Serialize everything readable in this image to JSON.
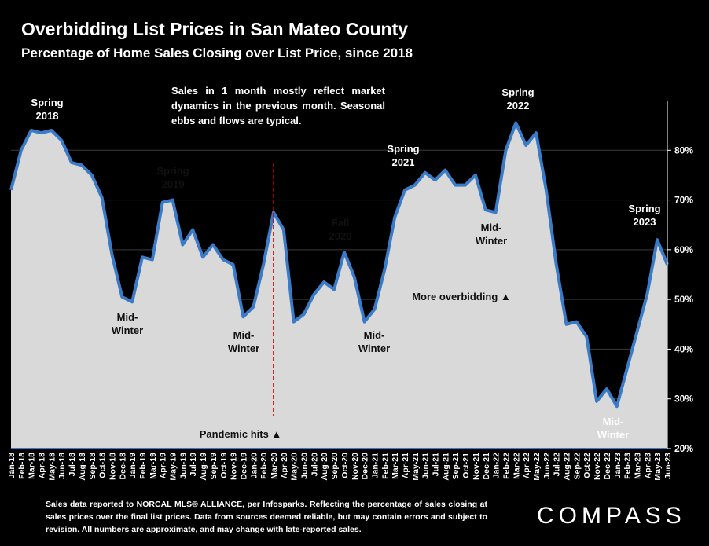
{
  "header": {
    "title": "Overbidding List Prices in San Mateo County",
    "subtitle": "Percentage of Home Sales Closing over List Price, since 2018"
  },
  "note": "Sales in 1 month mostly reflect market dynamics in the previous month. Seasonal ebbs and flows are typical.",
  "footnote": "Sales data reported to NORCAL MLS® ALLIANCE, per Infosparks. Reflecting the percentage of sales closing at sales prices over the final list prices. Data from sources deemed reliable, but may contain errors and subject to revision. All numbers are approximate, and may change with late-reported sales.",
  "logo": "COMPASS",
  "annotations": {
    "spring2018_a": "Spring",
    "spring2018_b": "2018",
    "spring2019_a": "Spring",
    "spring2019_b": "2019",
    "spring2021_a": "Spring",
    "spring2021_b": "2021",
    "spring2022_a": "Spring",
    "spring2022_b": "2022",
    "spring2023_a": "Spring",
    "spring2023_b": "2023",
    "fall2020_a": "Fall",
    "fall2020_b": "2020",
    "midwinter1_a": "Mid-",
    "midwinter1_b": "Winter",
    "midwinter2_a": "Mid-",
    "midwinter2_b": "Winter",
    "midwinter3_a": "Mid-",
    "midwinter3_b": "Winter",
    "midwinter4_a": "Mid-",
    "midwinter4_b": "Winter",
    "midwinter5_a": "Mid-",
    "midwinter5_b": "Winter",
    "pandemic": "Pandemic hits ▲",
    "more": "More overbidding ▲"
  },
  "colors": {
    "line": "#3a7bc8",
    "area": "#d9d9d9",
    "pandemic_line": "#c00000",
    "background": "#000000"
  },
  "chart_data": {
    "type": "area",
    "title": "Overbidding List Prices in San Mateo County",
    "subtitle": "Percentage of Home Sales Closing over List Price, since 2018",
    "ylim": [
      20,
      90
    ],
    "yticks": [
      20,
      30,
      40,
      50,
      60,
      70,
      80
    ],
    "ytick_labels": [
      "20%",
      "30%",
      "40%",
      "50%",
      "60%",
      "70%",
      "80%"
    ],
    "grid": true,
    "x": [
      "Jan-18",
      "Feb-18",
      "Mar-18",
      "Apr-18",
      "May-18",
      "Jun-18",
      "Jul-18",
      "Aug-18",
      "Sep-18",
      "Oct-18",
      "Nov-18",
      "Dec-18",
      "Jan-19",
      "Feb-19",
      "Mar-19",
      "Apr-19",
      "May-19",
      "Jun-19",
      "Jul-19",
      "Aug-19",
      "Sep-19",
      "Oct-19",
      "Nov-19",
      "Dec-19",
      "Jan-20",
      "Feb-20",
      "Mar-20",
      "Apr-20",
      "May-20",
      "Jun-20",
      "Jul-20",
      "Aug-20",
      "Sep-20",
      "Oct-20",
      "Nov-20",
      "Dec-20",
      "Jan-21",
      "Feb-21",
      "Mar-21",
      "Apr-21",
      "May-21",
      "Jun-21",
      "Jul-21",
      "Aug-21",
      "Sep-21",
      "Oct-21",
      "Nov-21",
      "Dec-21",
      "Jan-22",
      "Feb-22",
      "Mar-22",
      "Apr-22",
      "May-22",
      "Jun-22",
      "Jul-22",
      "Aug-22",
      "Sep-22",
      "Oct-22",
      "Nov-22",
      "Dec-22",
      "Jan-23",
      "Feb-23",
      "Mar-23",
      "Apr-23",
      "May-23",
      "Jun-23"
    ],
    "series": [
      {
        "values": [
          72,
          80,
          84,
          83.5,
          84,
          82,
          77.5,
          77,
          75,
          70.5,
          59,
          50.5,
          49.5,
          58.5,
          58,
          69.5,
          70,
          61,
          64,
          58.5,
          61,
          58,
          57,
          46.5,
          48.5,
          57,
          67.5,
          64,
          45.5,
          47,
          51,
          53.5,
          52,
          59.5,
          54.5,
          45.5,
          48,
          56,
          66.5,
          72,
          73,
          75.5,
          74,
          76,
          73,
          73,
          75,
          68,
          67.5,
          80,
          85.5,
          81,
          83.5,
          72,
          57,
          45,
          45.5,
          42.5,
          29.5,
          32,
          28.5,
          36,
          43.5,
          51,
          62,
          57
        ]
      }
    ],
    "pandemic_index": 26
  }
}
